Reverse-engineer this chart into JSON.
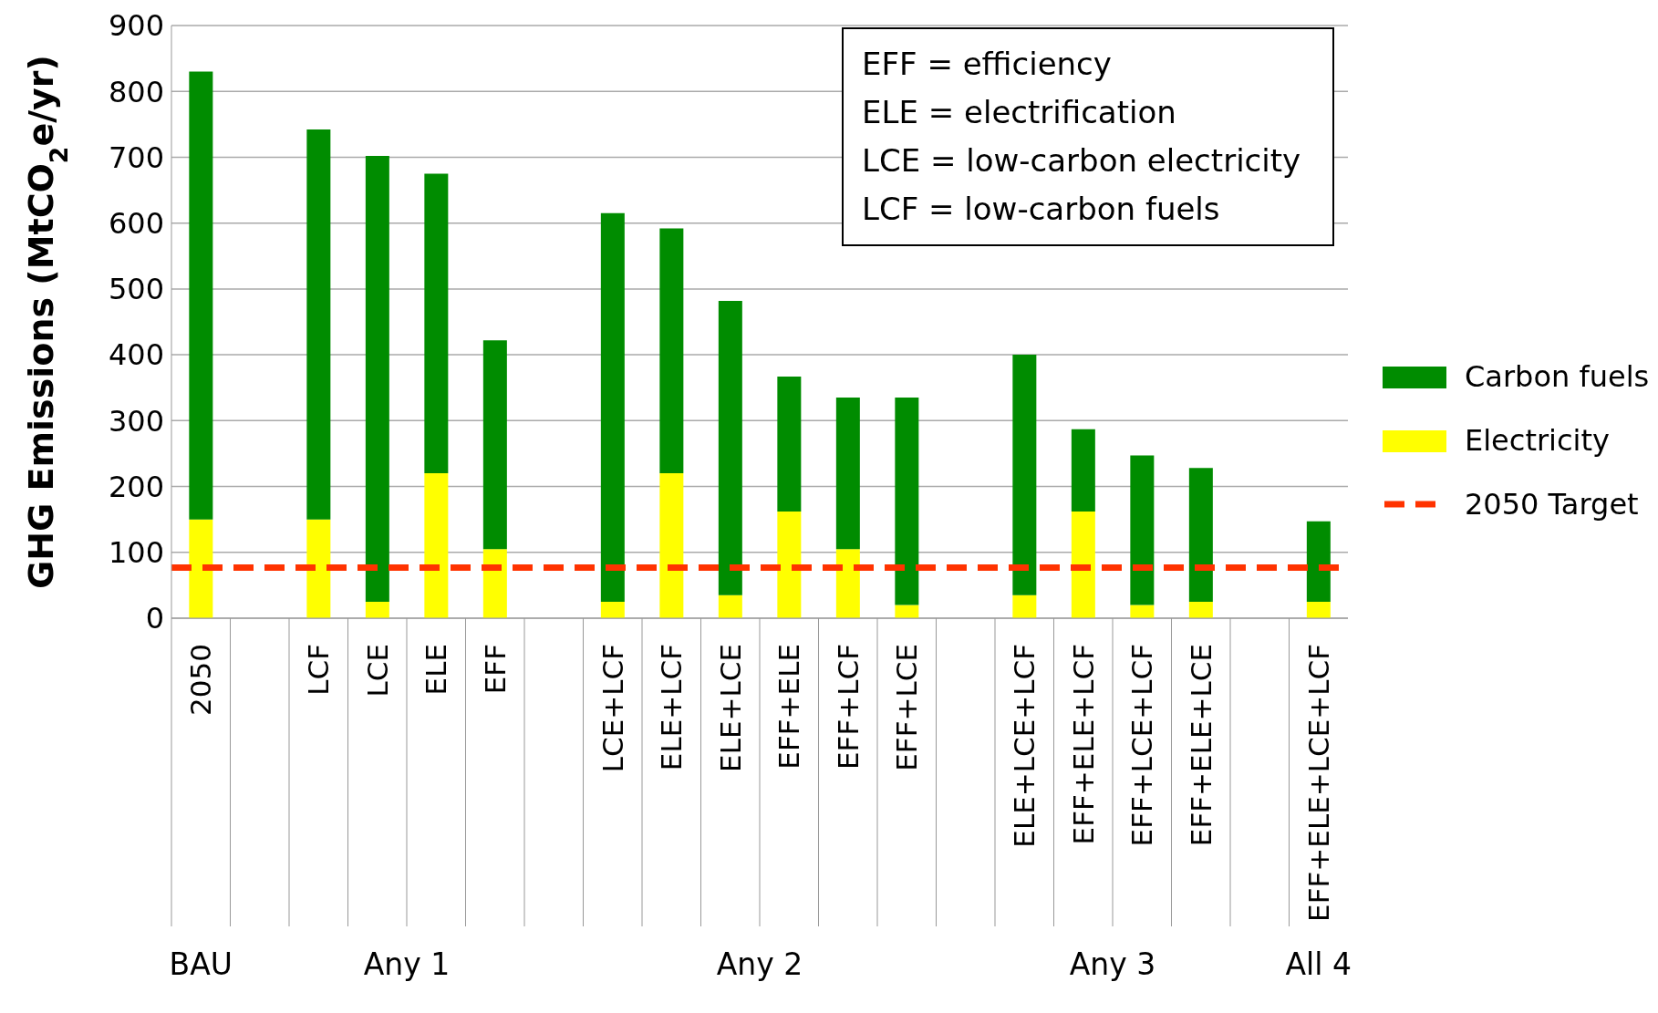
{
  "chart_data": {
    "type": "bar",
    "stacked": true,
    "ylabel": "GHG Emissions (MtCO$_{2}$e/yr)",
    "categories": [
      "2050",
      null,
      "LCF",
      "LCE",
      "ELE",
      "EFF",
      null,
      "LCE+LCF",
      "ELE+LCF",
      "ELE+LCE",
      "EFF+ELE",
      "EFF+LCF",
      "EFF+LCE",
      null,
      "ELE+LCE+LCF",
      "EFF+ELE+LCF",
      "EFF+LCE+LCF",
      "EFF+ELE+LCE",
      null,
      "EFF+ELE+LCE+LCF"
    ],
    "series": [
      {
        "name": "Electricity",
        "color": "#ffff00",
        "values": [
          150,
          null,
          150,
          25,
          220,
          105,
          null,
          25,
          220,
          35,
          162,
          105,
          20,
          null,
          35,
          162,
          20,
          25,
          null,
          25
        ]
      },
      {
        "name": "Carbon fuels",
        "color": "#008c00",
        "values": [
          680,
          null,
          592,
          677,
          455,
          317,
          null,
          590,
          372,
          447,
          205,
          230,
          315,
          null,
          365,
          125,
          227,
          203,
          null,
          122
        ]
      }
    ],
    "ref_lines": [
      {
        "axis": "y",
        "value": 77,
        "label": "2050 Target",
        "color": "#ff3300",
        "line_style": "dashed"
      }
    ],
    "ylim": [
      0,
      900
    ],
    "yticks": [
      0,
      100,
      200,
      300,
      400,
      500,
      600,
      700,
      800,
      900
    ],
    "grid": "y",
    "legend": "right",
    "annotations": [
      "EFF = efficiency",
      "ELE = electrification",
      "LCE = low-carbon electricity",
      "LCF = low-carbon fuels",
      "BAU",
      "Any 1",
      "Any 2",
      "Any 3",
      "All 4"
    ]
  }
}
